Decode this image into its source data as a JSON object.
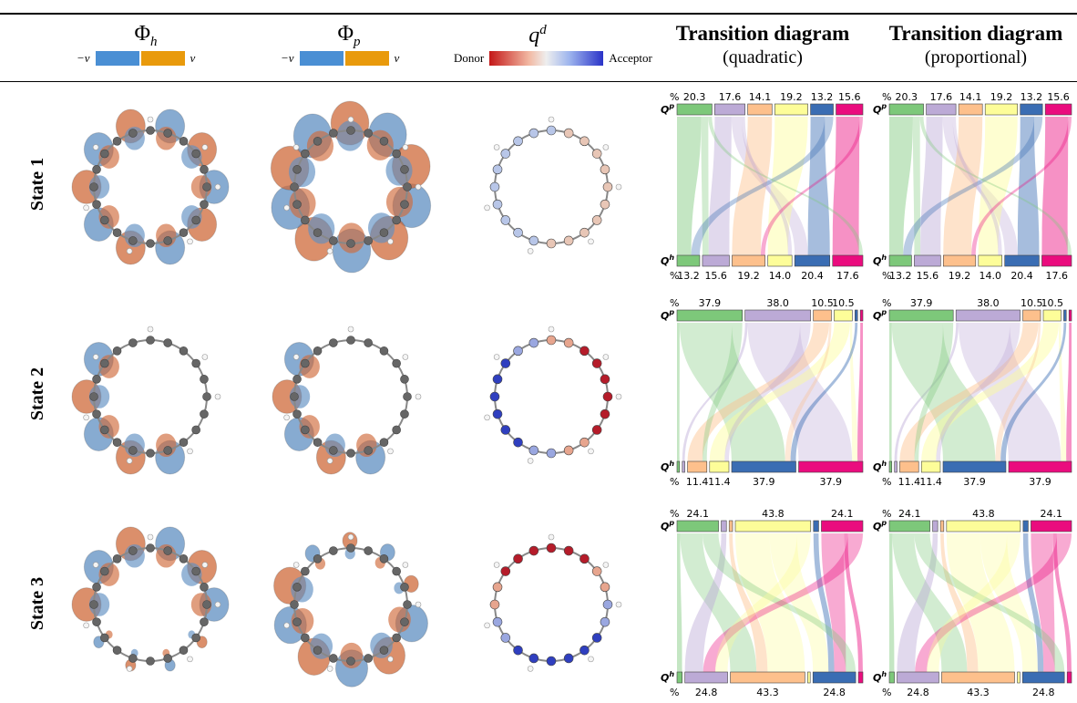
{
  "header": {
    "col1": {
      "symbol": "Φ",
      "subscript": "h",
      "neg_label": "−v",
      "pos_label": "v",
      "colors": [
        "#4a8fd4",
        "#e99a0c"
      ]
    },
    "col2": {
      "symbol": "Φ",
      "subscript": "p",
      "neg_label": "−v",
      "pos_label": "v",
      "colors": [
        "#4a8fd4",
        "#e99a0c"
      ]
    },
    "col3": {
      "symbol": "q",
      "superscript": "d",
      "left_label": "Donor",
      "right_label": "Acceptor"
    },
    "col4": {
      "title": "Transition diagram",
      "subtitle": "(quadratic)"
    },
    "col5": {
      "title": "Transition diagram",
      "subtitle": "(proportional)"
    }
  },
  "rows": [
    {
      "label": "State 1"
    },
    {
      "label": "State 2"
    },
    {
      "label": "State 3"
    }
  ],
  "axis_labels": {
    "top": "Q",
    "top_sup": "p",
    "bottom": "Q",
    "bottom_sup": "h",
    "percent": "%"
  },
  "group_colors": [
    "#7dc87a",
    "#bcaad6",
    "#fdc08c",
    "#fdfd99",
    "#3a6db3",
    "#ea0c7e"
  ],
  "diagrams": [
    {
      "top_values": [
        "20.3",
        "17.6",
        "14.1",
        "19.2",
        "13.2",
        "15.6"
      ],
      "bottom_values": [
        "13.2",
        "15.6",
        "19.2",
        "14.0",
        "20.4",
        "17.6"
      ],
      "top_fractions": [
        0.203,
        0.176,
        0.141,
        0.192,
        0.132,
        0.156
      ],
      "bottom_fractions": [
        0.132,
        0.156,
        0.192,
        0.14,
        0.204,
        0.176
      ]
    },
    {
      "top_values": [
        "37.9",
        "38.0",
        "10.5",
        "10.5",
        "",
        ""
      ],
      "bottom_values": [
        "",
        "",
        "11.4",
        "11.4",
        "37.9",
        "37.9"
      ],
      "top_fractions": [
        0.379,
        0.38,
        0.105,
        0.105,
        0.015,
        0.015
      ],
      "bottom_fractions": [
        0.015,
        0.015,
        0.114,
        0.114,
        0.379,
        0.379
      ]
    },
    {
      "top_values": [
        "24.1",
        "",
        "",
        "43.8",
        "",
        "24.1"
      ],
      "bottom_values": [
        "",
        "24.8",
        "43.3",
        "",
        "24.8",
        ""
      ],
      "top_fractions": [
        0.241,
        0.03,
        0.02,
        0.438,
        0.03,
        0.241
      ],
      "bottom_fractions": [
        0.03,
        0.248,
        0.433,
        0.015,
        0.248,
        0.026
      ]
    }
  ]
}
